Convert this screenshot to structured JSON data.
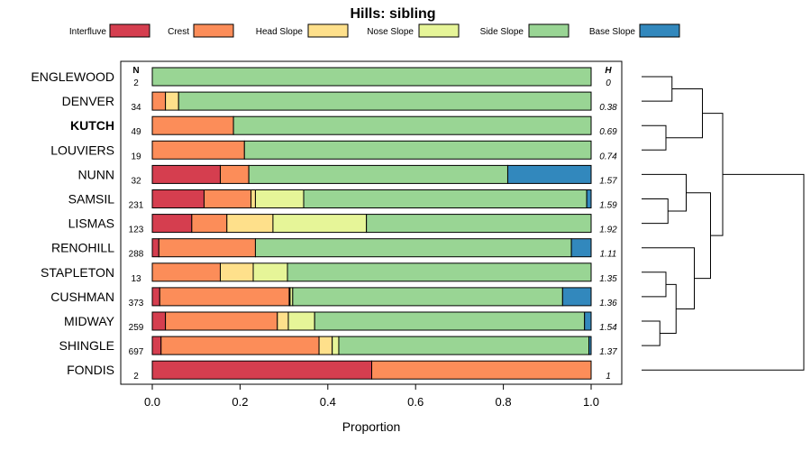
{
  "chart_data": {
    "type": "bar",
    "orientation": "horizontal",
    "stacked": true,
    "title": "Hills: sibling",
    "xlabel": "Proportion",
    "xlim": [
      0,
      1
    ],
    "xticks": [
      "0.0",
      "0.2",
      "0.4",
      "0.6",
      "0.8",
      "1.0"
    ],
    "xtick_values": [
      0,
      0.2,
      0.4,
      0.6,
      0.8,
      1.0
    ],
    "n_header": "N",
    "h_header": "H",
    "legend_position": "top",
    "highlighted_category": "KUTCH",
    "series": [
      {
        "name": "Interfluve",
        "color": "#d53e4f"
      },
      {
        "name": "Crest",
        "color": "#fc8d59"
      },
      {
        "name": "Head Slope",
        "color": "#fee08b"
      },
      {
        "name": "Nose Slope",
        "color": "#e6f598"
      },
      {
        "name": "Side Slope",
        "color": "#99d594"
      },
      {
        "name": "Base Slope",
        "color": "#3288bd"
      }
    ],
    "rows": [
      {
        "name": "ENGLEWOOD",
        "n": "2",
        "h": "0",
        "values": [
          0,
          0,
          0,
          0,
          1.0,
          0
        ]
      },
      {
        "name": "DENVER",
        "n": "34",
        "h": "0.38",
        "values": [
          0,
          0.03,
          0.03,
          0,
          0.94,
          0
        ]
      },
      {
        "name": "KUTCH",
        "n": "49",
        "h": "0.69",
        "values": [
          0,
          0.185,
          0,
          0,
          0.815,
          0
        ]
      },
      {
        "name": "LOUVIERS",
        "n": "19",
        "h": "0.74",
        "values": [
          0,
          0.21,
          0,
          0,
          0.79,
          0
        ]
      },
      {
        "name": "NUNN",
        "n": "32",
        "h": "1.57",
        "values": [
          0.155,
          0.065,
          0,
          0,
          0.59,
          0.19
        ]
      },
      {
        "name": "SAMSIL",
        "n": "231",
        "h": "1.59",
        "values": [
          0.118,
          0.107,
          0.01,
          0.11,
          0.645,
          0.01
        ]
      },
      {
        "name": "LISMAS",
        "n": "123",
        "h": "1.92",
        "values": [
          0.09,
          0.08,
          0.105,
          0.213,
          0.512,
          0
        ]
      },
      {
        "name": "RENOHILL",
        "n": "288",
        "h": "1.11",
        "values": [
          0.015,
          0.22,
          0,
          0,
          0.72,
          0.045
        ]
      },
      {
        "name": "STAPLETON",
        "n": "13",
        "h": "1.35",
        "values": [
          0,
          0.155,
          0.075,
          0.078,
          0.692,
          0
        ]
      },
      {
        "name": "CUSHMAN",
        "n": "373",
        "h": "1.36",
        "values": [
          0.017,
          0.295,
          0.002,
          0.006,
          0.615,
          0.065
        ]
      },
      {
        "name": "MIDWAY",
        "n": "259",
        "h": "1.54",
        "values": [
          0.03,
          0.255,
          0.025,
          0.06,
          0.615,
          0.015
        ]
      },
      {
        "name": "SHINGLE",
        "n": "697",
        "h": "1.37",
        "values": [
          0.02,
          0.36,
          0.03,
          0.015,
          0.57,
          0.005
        ]
      },
      {
        "name": "FONDIS",
        "n": "2",
        "h": "1",
        "values": [
          0.5,
          0.5,
          0,
          0,
          0,
          0
        ]
      }
    ],
    "dendrogram": {
      "description": "hierarchical clustering of rows",
      "merges": [
        [
          0,
          1,
          0.15
        ],
        [
          2,
          3,
          0.12
        ],
        [
          "m0",
          "m1",
          0.3
        ],
        [
          5,
          6,
          0.13
        ],
        [
          4,
          "m3",
          0.22
        ],
        [
          8,
          9,
          0.12
        ],
        [
          10,
          11,
          0.09
        ],
        [
          "m5",
          "m6",
          0.17
        ],
        [
          7,
          "m7",
          0.26
        ],
        [
          "m4",
          "m8",
          0.34
        ],
        [
          "m2",
          "m9",
          0.4
        ],
        [
          "m10",
          12,
          0.8
        ]
      ]
    }
  }
}
